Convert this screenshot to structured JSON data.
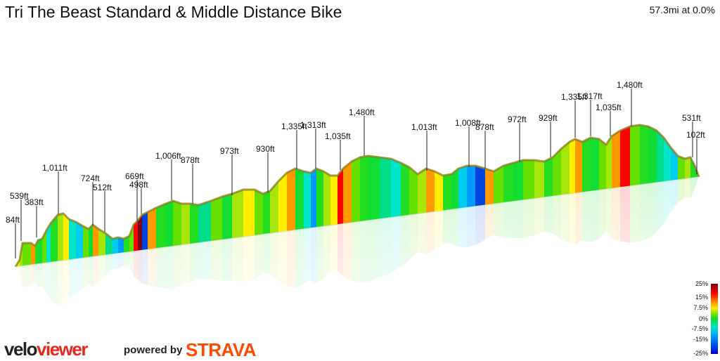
{
  "header": {
    "title": "Tri The Beast Standard & Middle Distance Bike",
    "stat": "57.3mi at 0.0%"
  },
  "profile": {
    "peak_labels": [
      {
        "text": "84ft"
      },
      {
        "text": "539ft"
      },
      {
        "text": "383ft"
      },
      {
        "text": "1,011ft"
      },
      {
        "text": "724ft"
      },
      {
        "text": "512ft"
      },
      {
        "text": "669ft"
      },
      {
        "text": "498ft"
      },
      {
        "text": "1,006ft"
      },
      {
        "text": "878ft"
      },
      {
        "text": "973ft"
      },
      {
        "text": "930ft"
      },
      {
        "text": "1,335ft"
      },
      {
        "text": "1,313ft"
      },
      {
        "text": "1,035ft"
      },
      {
        "text": "1,480ft"
      },
      {
        "text": "1,013ft"
      },
      {
        "text": "1,008ft"
      },
      {
        "text": "878ft"
      },
      {
        "text": "972ft"
      },
      {
        "text": "929ft"
      },
      {
        "text": "1,335ft"
      },
      {
        "text": "1,317ft"
      },
      {
        "text": "1,035ft"
      },
      {
        "text": "1,480ft"
      },
      {
        "text": "531ft"
      },
      {
        "text": "102ft"
      }
    ]
  },
  "legend": {
    "labels": [
      "25%",
      "15%",
      "7.5%",
      "0%",
      "-7.5%",
      "-15%",
      "-25%"
    ],
    "colors": [
      "#7a0014",
      "#ff0000",
      "#ff9900",
      "#ffee00",
      "#11dd33",
      "#00e6c8",
      "#0099ff",
      "#0000cc"
    ]
  },
  "branding": {
    "logo_part1": "velo",
    "logo_part2": "viewer",
    "powered_by": "powered by",
    "strava": "STRAVA"
  }
}
